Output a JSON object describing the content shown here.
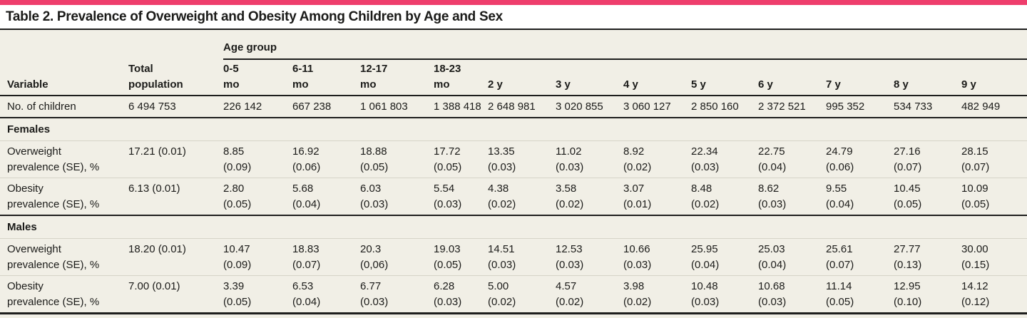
{
  "page": {
    "accent_color": "#ee3e6c",
    "table_background": "#f1efe6"
  },
  "title": "Table 2. Prevalence of Overweight and Obesity Among Children by Age and Sex",
  "header": {
    "variable": "Variable",
    "total_population_lines": [
      "Total",
      "population"
    ],
    "age_group": "Age group",
    "age_columns": [
      [
        "0-5",
        "mo"
      ],
      [
        "6-11",
        "mo"
      ],
      [
        "12-17",
        "mo"
      ],
      [
        "18-23",
        "mo"
      ],
      [
        "2 y"
      ],
      [
        "3 y"
      ],
      [
        "4 y"
      ],
      [
        "5 y"
      ],
      [
        "6 y"
      ],
      [
        "7 y"
      ],
      [
        "8 y"
      ],
      [
        "9 y"
      ]
    ]
  },
  "rows": [
    {
      "type": "data",
      "label_lines": [
        "No. of children"
      ],
      "total": "6 494 753",
      "cells": [
        [
          "226 142"
        ],
        [
          "667 238"
        ],
        [
          "1 061 803"
        ],
        [
          "1 388 418"
        ],
        [
          "2 648 981"
        ],
        [
          "3 020 855"
        ],
        [
          "3 060 127"
        ],
        [
          "2 850 160"
        ],
        [
          "2 372 521"
        ],
        [
          "995 352"
        ],
        [
          "534 733"
        ],
        [
          "482 949"
        ]
      ],
      "divider_after": "strong"
    },
    {
      "type": "section",
      "label": "Females",
      "divider_after": "thin"
    },
    {
      "type": "data",
      "label_lines": [
        "Overweight",
        "prevalence (SE), %"
      ],
      "total": "17.21 (0.01)",
      "cells": [
        [
          "8.85",
          "(0.09)"
        ],
        [
          "16.92",
          "(0.06)"
        ],
        [
          "18.88",
          "(0.05)"
        ],
        [
          "17.72",
          "(0.05)"
        ],
        [
          "13.35",
          "(0.03)"
        ],
        [
          "11.02",
          "(0.03)"
        ],
        [
          "8.92",
          "(0.02)"
        ],
        [
          "22.34",
          "(0.03)"
        ],
        [
          "22.75",
          "(0.04)"
        ],
        [
          "24.79",
          "(0.06)"
        ],
        [
          "27.16",
          "(0.07)"
        ],
        [
          "28.15",
          "(0.07)"
        ]
      ],
      "divider_after": "thin"
    },
    {
      "type": "data",
      "label_lines": [
        "Obesity",
        "prevalence (SE), %"
      ],
      "total": "6.13 (0.01)",
      "cells": [
        [
          "2.80",
          "(0.05)"
        ],
        [
          "5.68",
          "(0.04)"
        ],
        [
          "6.03",
          "(0.03)"
        ],
        [
          "5.54",
          "(0.03)"
        ],
        [
          "4.38",
          "(0.02)"
        ],
        [
          "3.58",
          "(0.02)"
        ],
        [
          "3.07",
          "(0.01)"
        ],
        [
          "8.48",
          "(0.02)"
        ],
        [
          "8.62",
          "(0.03)"
        ],
        [
          "9.55",
          "(0.04)"
        ],
        [
          "10.45",
          "(0.05)"
        ],
        [
          "10.09",
          "(0.05)"
        ]
      ],
      "divider_after": "strong"
    },
    {
      "type": "section",
      "label": "Males",
      "divider_after": "thin"
    },
    {
      "type": "data",
      "label_lines": [
        "Overweight",
        "prevalence (SE), %"
      ],
      "total": "18.20 (0.01)",
      "cells": [
        [
          "10.47",
          "(0.09)"
        ],
        [
          "18.83",
          "(0.07)"
        ],
        [
          "20.3",
          "(0,06)"
        ],
        [
          "19.03",
          "(0.05)"
        ],
        [
          "14.51",
          "(0.03)"
        ],
        [
          "12.53",
          "(0.03)"
        ],
        [
          "10.66",
          "(0.03)"
        ],
        [
          "25.95",
          "(0.04)"
        ],
        [
          "25.03",
          "(0.04)"
        ],
        [
          "25.61",
          "(0.07)"
        ],
        [
          "27.77",
          "(0.13)"
        ],
        [
          "30.00",
          "(0.15)"
        ]
      ],
      "divider_after": "thin"
    },
    {
      "type": "data",
      "label_lines": [
        "Obesity",
        "prevalence (SE), %"
      ],
      "total": "7.00 (0.01)",
      "cells": [
        [
          "3.39",
          "(0.05)"
        ],
        [
          "6.53",
          "(0.04)"
        ],
        [
          "6.77",
          "(0.03)"
        ],
        [
          "6.28",
          "(0.03)"
        ],
        [
          "5.00",
          "(0.02)"
        ],
        [
          "4.57",
          "(0.02)"
        ],
        [
          "3.98",
          "(0.02)"
        ],
        [
          "10.48",
          "(0.03)"
        ],
        [
          "10.68",
          "(0.03)"
        ],
        [
          "11.14",
          "(0.05)"
        ],
        [
          "12.95",
          "(0.10)"
        ],
        [
          "14.12",
          "(0.12)"
        ]
      ],
      "divider_after": "end"
    }
  ]
}
